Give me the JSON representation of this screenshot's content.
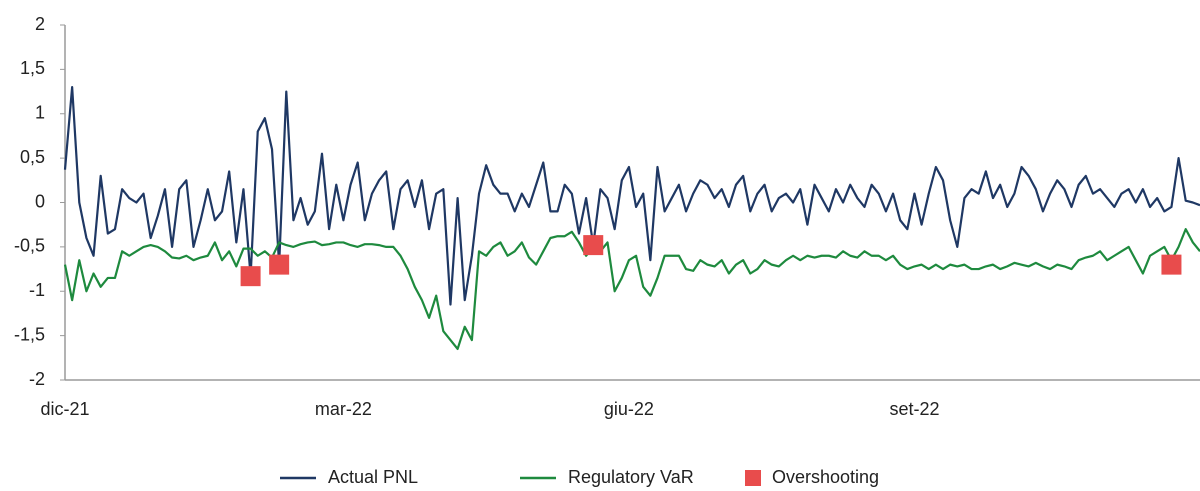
{
  "chart_data": {
    "type": "line",
    "categories": [
      "dic-21",
      null,
      null,
      null,
      null,
      null,
      null,
      null,
      null,
      null,
      null,
      null,
      null,
      null,
      null,
      null,
      null,
      null,
      null,
      null,
      null,
      null,
      null,
      null,
      null,
      null,
      null,
      null,
      null,
      null,
      null,
      null,
      null,
      null,
      null,
      null,
      null,
      null,
      null,
      "mar-22",
      null,
      null,
      null,
      null,
      null,
      null,
      null,
      null,
      null,
      null,
      null,
      null,
      null,
      null,
      null,
      null,
      null,
      null,
      null,
      null,
      null,
      null,
      null,
      null,
      null,
      null,
      null,
      null,
      null,
      null,
      null,
      null,
      null,
      null,
      null,
      null,
      null,
      null,
      null,
      "giu-22",
      null,
      null,
      null,
      null,
      null,
      null,
      null,
      null,
      null,
      null,
      null,
      null,
      null,
      null,
      null,
      null,
      null,
      null,
      null,
      null,
      null,
      null,
      null,
      null,
      null,
      null,
      null,
      null,
      null,
      null,
      null,
      null,
      null,
      null,
      null,
      null,
      null,
      null,
      null,
      "set-22",
      null,
      null,
      null,
      null,
      null,
      null,
      null,
      null,
      null,
      null,
      null,
      null,
      null,
      null,
      null,
      null,
      null,
      null,
      null,
      null,
      null,
      null,
      null,
      null,
      null,
      null,
      null,
      null,
      null,
      null,
      null,
      null,
      null,
      null,
      null,
      null,
      null,
      null,
      null,
      null
    ],
    "series": [
      {
        "name": "Actual PNL",
        "type": "line",
        "color": "#1f3864",
        "values": [
          0.37,
          1.3,
          0,
          -0.4,
          -0.6,
          0.3,
          -0.35,
          -0.3,
          0.15,
          0.05,
          0,
          0.1,
          -0.4,
          -0.15,
          0.15,
          -0.5,
          0.15,
          0.25,
          -0.5,
          -0.2,
          0.15,
          -0.2,
          -0.1,
          0.35,
          -0.45,
          0.15,
          -0.83,
          0.8,
          0.95,
          0.6,
          -0.7,
          1.25,
          -0.2,
          0.05,
          -0.25,
          -0.1,
          0.55,
          -0.3,
          0.2,
          -0.2,
          0.2,
          0.45,
          -0.2,
          0.1,
          0.25,
          0.35,
          -0.3,
          0.15,
          0.25,
          -0.05,
          0.25,
          -0.3,
          0.1,
          0.15,
          -1.15,
          0.05,
          -1.1,
          -0.6,
          0.1,
          0.42,
          0.2,
          0.1,
          0.1,
          -0.1,
          0.1,
          -0.05,
          0.2,
          0.45,
          -0.1,
          -0.1,
          0.2,
          0.1,
          -0.35,
          0.05,
          -0.48,
          0.15,
          0.05,
          -0.3,
          0.25,
          0.4,
          -0.05,
          0.1,
          -0.65,
          0.4,
          -0.1,
          0.05,
          0.2,
          -0.1,
          0.1,
          0.25,
          0.2,
          0.05,
          0.15,
          -0.05,
          0.2,
          0.3,
          -0.1,
          0.1,
          0.2,
          -0.1,
          0.05,
          0.1,
          0,
          0.15,
          -0.25,
          0.2,
          0.05,
          -0.1,
          0.15,
          0,
          0.2,
          0.05,
          -0.05,
          0.2,
          0.1,
          -0.1,
          0.1,
          -0.2,
          -0.3,
          0.1,
          -0.25,
          0.1,
          0.4,
          0.25,
          -0.2,
          -0.5,
          0.05,
          0.15,
          0.1,
          0.35,
          0.05,
          0.2,
          -0.05,
          0.1,
          0.4,
          0.3,
          0.15,
          -0.1,
          0.1,
          0.25,
          0.15,
          -0.05,
          0.2,
          0.3,
          0.1,
          0.15,
          0.05,
          -0.05,
          0.1,
          0.15,
          0,
          0.15,
          -0.05,
          0.05,
          -0.1,
          -0.05,
          0.5,
          0.02,
          0,
          -0.03
        ]
      },
      {
        "name": "Regulatory VaR",
        "type": "line",
        "color": "#1e8a3e",
        "values": [
          -0.7,
          -1.1,
          -0.65,
          -1.0,
          -0.8,
          -0.95,
          -0.85,
          -0.85,
          -0.55,
          -0.6,
          -0.55,
          -0.5,
          -0.48,
          -0.5,
          -0.55,
          -0.62,
          -0.63,
          -0.6,
          -0.65,
          -0.62,
          -0.6,
          -0.45,
          -0.65,
          -0.55,
          -0.72,
          -0.52,
          -0.52,
          -0.6,
          -0.55,
          -0.62,
          -0.45,
          -0.48,
          -0.5,
          -0.47,
          -0.45,
          -0.44,
          -0.48,
          -0.47,
          -0.45,
          -0.45,
          -0.48,
          -0.5,
          -0.47,
          -0.47,
          -0.48,
          -0.5,
          -0.5,
          -0.6,
          -0.75,
          -0.95,
          -1.1,
          -1.3,
          -1.05,
          -1.45,
          -1.55,
          -1.65,
          -1.4,
          -1.55,
          -0.55,
          -0.6,
          -0.5,
          -0.45,
          -0.6,
          -0.55,
          -0.45,
          -0.62,
          -0.7,
          -0.55,
          -0.4,
          -0.38,
          -0.38,
          -0.33,
          -0.45,
          -0.6,
          -0.5,
          -0.55,
          -0.45,
          -1.0,
          -0.85,
          -0.65,
          -0.6,
          -0.95,
          -1.05,
          -0.85,
          -0.6,
          -0.6,
          -0.6,
          -0.75,
          -0.77,
          -0.65,
          -0.7,
          -0.72,
          -0.65,
          -0.8,
          -0.7,
          -0.65,
          -0.8,
          -0.75,
          -0.65,
          -0.7,
          -0.72,
          -0.65,
          -0.6,
          -0.65,
          -0.6,
          -0.62,
          -0.6,
          -0.6,
          -0.62,
          -0.55,
          -0.6,
          -0.62,
          -0.55,
          -0.6,
          -0.6,
          -0.65,
          -0.6,
          -0.7,
          -0.75,
          -0.72,
          -0.7,
          -0.75,
          -0.7,
          -0.75,
          -0.7,
          -0.72,
          -0.7,
          -0.75,
          -0.75,
          -0.72,
          -0.7,
          -0.75,
          -0.72,
          -0.68,
          -0.7,
          -0.72,
          -0.68,
          -0.72,
          -0.75,
          -0.7,
          -0.72,
          -0.75,
          -0.65,
          -0.62,
          -0.6,
          -0.55,
          -0.65,
          -0.6,
          -0.55,
          -0.5,
          -0.65,
          -0.8,
          -0.6,
          -0.55,
          -0.5,
          -0.65,
          -0.5,
          -0.3,
          -0.45,
          -0.55
        ]
      },
      {
        "name": "Overshooting",
        "type": "scatter",
        "color": "#e84c4c",
        "values": [
          null,
          null,
          null,
          null,
          null,
          null,
          null,
          null,
          null,
          null,
          null,
          null,
          null,
          null,
          null,
          null,
          null,
          null,
          null,
          null,
          null,
          null,
          null,
          null,
          null,
          null,
          -0.83,
          null,
          null,
          null,
          -0.7,
          null,
          null,
          null,
          null,
          null,
          null,
          null,
          null,
          null,
          null,
          null,
          null,
          null,
          null,
          null,
          null,
          null,
          null,
          null,
          null,
          null,
          null,
          null,
          null,
          null,
          null,
          null,
          null,
          null,
          null,
          null,
          null,
          null,
          null,
          null,
          null,
          null,
          null,
          null,
          null,
          null,
          null,
          null,
          -0.48,
          null,
          null,
          null,
          null,
          null,
          null,
          null,
          null,
          null,
          null,
          null,
          null,
          null,
          null,
          null,
          null,
          null,
          null,
          null,
          null,
          null,
          null,
          null,
          null,
          null,
          null,
          null,
          null,
          null,
          null,
          null,
          null,
          null,
          null,
          null,
          null,
          null,
          null,
          null,
          null,
          null,
          null,
          null,
          null,
          null,
          null,
          null,
          null,
          null,
          null,
          null,
          null,
          null,
          null,
          null,
          null,
          null,
          null,
          null,
          null,
          null,
          null,
          null,
          null,
          null,
          null,
          null,
          null,
          null,
          null,
          null,
          null,
          null,
          null,
          null,
          null,
          null,
          null,
          null,
          null,
          -0.7
        ]
      }
    ],
    "ylim": [
      -2,
      2
    ],
    "yticks": [
      2,
      {
        "value": 1.5,
        "label": "1,5"
      },
      1,
      {
        "value": 0.5,
        "label": "0,5"
      },
      0,
      {
        "value": -0.5,
        "label": "-0,5"
      },
      -1,
      {
        "value": -1.5,
        "label": "-1,5"
      },
      -2
    ],
    "legend": "bottom"
  }
}
